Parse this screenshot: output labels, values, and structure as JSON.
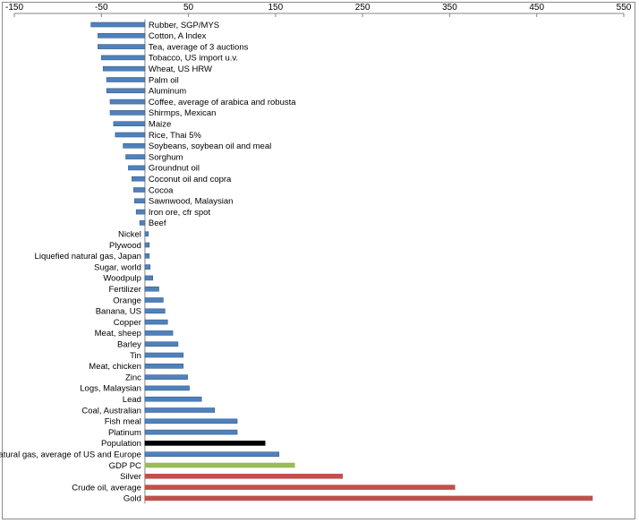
{
  "chart_data": {
    "type": "bar",
    "orientation": "horizontal",
    "title": "",
    "xlabel": "",
    "ylabel": "",
    "xlim": [
      -150,
      550
    ],
    "x_ticks": [
      -150,
      -50,
      50,
      150,
      250,
      350,
      450,
      550
    ],
    "x_tick_labels": [
      "-150",
      "-50",
      "50",
      "150",
      "250",
      "350",
      "450",
      "550"
    ],
    "x_axis_position": "top",
    "grid": false,
    "legend": "none",
    "categories": [
      "Rubber, SGP/MYS",
      "Cotton, A Index",
      "Tea, average of 3 auctions",
      "Tobacco, US import u.v.",
      "Wheat, US HRW",
      "Palm oil",
      "Aluminum",
      "Coffee, average of arabica and robusta",
      "Shirmps, Mexican",
      "Maize",
      "Rice, Thai 5%",
      "Soybeans, soybean oil and meal",
      "Sorghum",
      "Groundnut oil",
      "Coconut oil and copra",
      "Cocoa",
      "Sawnwood, Malaysian",
      "Iron ore, cfr spot",
      "Beef",
      "Nickel",
      "Plywood",
      "Liquefied natural gas, Japan",
      "Sugar, world",
      "Woodpulp",
      "Fertilizer",
      "Orange",
      "Banana, US",
      "Copper",
      "Meat, sheep",
      "Barley",
      "Tin",
      "Meat, chicken",
      "Zinc",
      "Logs, Malaysian",
      "Lead",
      "Coal, Australian",
      "Fish meal",
      "Platinum",
      "Population",
      "Natural gas, average of US and Europe",
      "GDP PC",
      "Silver",
      "Crude oil, average",
      "Gold"
    ],
    "values": [
      -62,
      -54,
      -54,
      -50,
      -48,
      -44,
      -44,
      -40,
      -40,
      -36,
      -34,
      -25,
      -22,
      -19,
      -15,
      -13,
      -12,
      -10,
      -6,
      4,
      5,
      5,
      6,
      9,
      16,
      21,
      23,
      26,
      32,
      38,
      44,
      44,
      49,
      51,
      65,
      80,
      106,
      106,
      138,
      154,
      172,
      227,
      356,
      514
    ],
    "bar_colors": [
      "#4f81bd",
      "#4f81bd",
      "#4f81bd",
      "#4f81bd",
      "#4f81bd",
      "#4f81bd",
      "#4f81bd",
      "#4f81bd",
      "#4f81bd",
      "#4f81bd",
      "#4f81bd",
      "#4f81bd",
      "#4f81bd",
      "#4f81bd",
      "#4f81bd",
      "#4f81bd",
      "#4f81bd",
      "#4f81bd",
      "#4f81bd",
      "#4f81bd",
      "#4f81bd",
      "#4f81bd",
      "#4f81bd",
      "#4f81bd",
      "#4f81bd",
      "#4f81bd",
      "#4f81bd",
      "#4f81bd",
      "#4f81bd",
      "#4f81bd",
      "#4f81bd",
      "#4f81bd",
      "#4f81bd",
      "#4f81bd",
      "#4f81bd",
      "#4f81bd",
      "#4f81bd",
      "#4f81bd",
      "#000000",
      "#4f81bd",
      "#9bbb59",
      "#c0504d",
      "#c0504d",
      "#c0504d"
    ],
    "bar_edge_color": "#385d8a",
    "axis_color": "#868686"
  }
}
